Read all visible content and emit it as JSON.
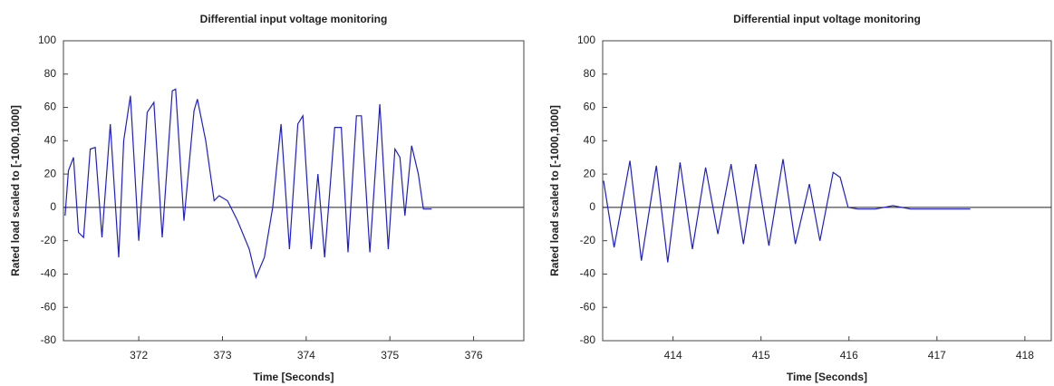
{
  "chart_data": [
    {
      "type": "line",
      "title": "Differential input voltage monitoring",
      "x_label": "Time [Seconds]",
      "y_label": "Rated load scaled to [-1000,1000]",
      "x": [
        371.12,
        371.16,
        371.22,
        371.28,
        371.34,
        371.42,
        371.48,
        371.56,
        371.66,
        371.76,
        371.82,
        371.9,
        372.0,
        372.1,
        372.18,
        372.28,
        372.4,
        372.44,
        372.54,
        372.66,
        372.7,
        372.8,
        372.9,
        372.96,
        373.06,
        373.18,
        373.32,
        373.4,
        373.5,
        373.6,
        373.7,
        373.8,
        373.9,
        373.96,
        374.06,
        374.14,
        374.22,
        374.34,
        374.42,
        374.5,
        374.6,
        374.66,
        374.76,
        374.88,
        374.98,
        375.06,
        375.12,
        375.18,
        375.26,
        375.34,
        375.4,
        375.5
      ],
      "values": [
        -5,
        22,
        30,
        -15,
        -18,
        35,
        36,
        -18,
        50,
        -30,
        40,
        67,
        -20,
        57,
        63,
        -18,
        70,
        71,
        -8,
        58,
        65,
        40,
        4,
        7,
        4,
        -8,
        -25,
        -42,
        -30,
        0,
        50,
        -25,
        50,
        55,
        -25,
        20,
        -30,
        48,
        48,
        -27,
        55,
        55,
        -27,
        62,
        -25,
        35,
        30,
        -5,
        37,
        20,
        -1,
        -1
      ],
      "color": "#1f1fc8",
      "xlim": [
        371.1,
        376.6
      ],
      "xticks": [
        372,
        373,
        374,
        375,
        376
      ],
      "ylim": [
        -80,
        100
      ],
      "yticks": [
        -80,
        -60,
        -40,
        -20,
        0,
        20,
        40,
        60,
        80,
        100
      ]
    },
    {
      "type": "line",
      "title": "Differential input voltage monitoring",
      "x_label": "Time [Seconds]",
      "y_label": "Rated load scaled to [-1000,1000]",
      "x": [
        413.21,
        413.33,
        413.51,
        413.64,
        413.81,
        413.94,
        414.08,
        414.22,
        414.37,
        414.51,
        414.66,
        414.8,
        414.94,
        415.09,
        415.25,
        415.39,
        415.55,
        415.67,
        415.82,
        415.9,
        415.99,
        416.1,
        416.3,
        416.5,
        416.7,
        416.9,
        417.1,
        417.38
      ],
      "values": [
        16,
        -24,
        28,
        -32,
        25,
        -33,
        27,
        -25,
        24,
        -16,
        26,
        -22,
        26,
        -23,
        29,
        -22,
        14,
        -20,
        21,
        18,
        0,
        -1,
        -1,
        1,
        -1,
        -1,
        -1,
        -1
      ],
      "color": "#1f1fc8",
      "xlim": [
        413.2,
        418.3
      ],
      "xticks": [
        414,
        415,
        416,
        417,
        418
      ],
      "ylim": [
        -80,
        100
      ],
      "yticks": [
        -80,
        -60,
        -40,
        -20,
        0,
        20,
        40,
        60,
        80,
        100
      ]
    }
  ]
}
